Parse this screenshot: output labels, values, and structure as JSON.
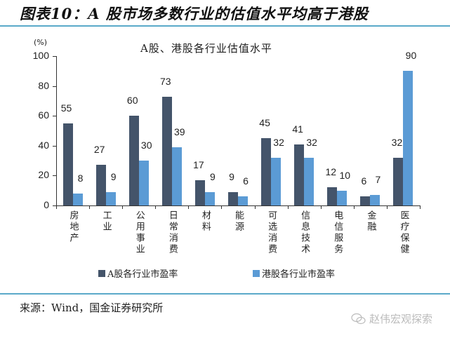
{
  "figure": {
    "title": "图表10：A 股市场多数行业的估值水平均高于港股",
    "source": "来源：Wind，国金证券研究所",
    "watermark": "赵伟宏观探索",
    "watermark_icon": "wechat-icon"
  },
  "colors": {
    "a_share": "#44546a",
    "hk_share": "#5b9bd5",
    "rule": "#5aa9c9"
  },
  "chart_data": {
    "type": "bar",
    "title": "A股、港股各行业估值水平",
    "ylabel": "(%)",
    "xlabel": "",
    "ylim": [
      0,
      100
    ],
    "yticks": [
      0,
      20,
      40,
      60,
      80,
      100
    ],
    "grid": false,
    "legend_position": "bottom",
    "categories": [
      "房地产",
      "工业",
      "公用事业",
      "日常消费",
      "材料",
      "能源",
      "可选消费",
      "信息技术",
      "电信服务",
      "金融",
      "医疗保健"
    ],
    "series": [
      {
        "name": "A股各行业市盈率",
        "values": [
          55,
          27,
          60,
          73,
          17,
          9,
          45,
          41,
          12,
          6,
          32
        ]
      },
      {
        "name": "港股各行业市盈率",
        "values": [
          8,
          9,
          30,
          39,
          9,
          6,
          32,
          32,
          10,
          7,
          90
        ]
      }
    ]
  }
}
